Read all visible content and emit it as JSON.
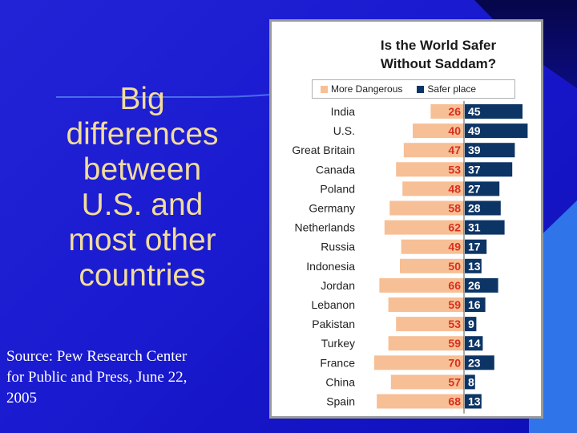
{
  "slide": {
    "title_lines": [
      "Big",
      "differences",
      "between",
      "U.S. and",
      "most other",
      "countries"
    ],
    "source_lines": [
      "Source: Pew Research Center",
      "for Public and Press, June 22,",
      "2005"
    ]
  },
  "colors": {
    "background": "#1a1ad0",
    "title_text": "#f2dc9c",
    "more_dangerous": "#f7bf95",
    "safer_place": "#0c3566",
    "value_on_orange": "#d8301f"
  },
  "chart_data": {
    "type": "bar",
    "orientation": "horizontal-diverging",
    "title_lines": [
      "Is the World Safer",
      "Without Saddam?"
    ],
    "legend": [
      "More Dangerous",
      "Safer place"
    ],
    "categories": [
      "India",
      "U.S.",
      "Great Britain",
      "Canada",
      "Poland",
      "Germany",
      "Netherlands",
      "Russia",
      "Indonesia",
      "Jordan",
      "Lebanon",
      "Pakistan",
      "Turkey",
      "France",
      "China",
      "Spain"
    ],
    "series": [
      {
        "name": "More Dangerous",
        "values": [
          26,
          40,
          47,
          53,
          48,
          58,
          62,
          49,
          50,
          66,
          59,
          53,
          59,
          70,
          57,
          68
        ]
      },
      {
        "name": "Safer place",
        "values": [
          45,
          49,
          39,
          37,
          27,
          28,
          31,
          17,
          13,
          26,
          16,
          9,
          14,
          23,
          8,
          13
        ]
      }
    ],
    "units": "percent"
  }
}
